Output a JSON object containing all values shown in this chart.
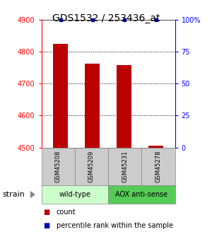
{
  "title": "GDS1532 / 253436_at",
  "samples": [
    "GSM45208",
    "GSM45209",
    "GSM45231",
    "GSM45278"
  ],
  "counts": [
    4825,
    4762,
    4757,
    4507
  ],
  "percentiles": [
    100,
    100,
    100,
    100
  ],
  "ylim_left": [
    4500,
    4900
  ],
  "ylim_right": [
    0,
    100
  ],
  "yticks_left": [
    4500,
    4600,
    4700,
    4800,
    4900
  ],
  "yticks_right": [
    0,
    25,
    50,
    75,
    100
  ],
  "bar_color": "#bb0000",
  "dot_color": "#0000bb",
  "bar_width": 0.45,
  "groups": [
    {
      "label": "wild-type",
      "color": "#ccffcc",
      "samples": [
        0,
        1
      ]
    },
    {
      "label": "AOX anti-sense",
      "color": "#55cc55",
      "samples": [
        2,
        3
      ]
    }
  ],
  "strain_label": "strain",
  "legend_count_label": "count",
  "legend_pct_label": "percentile rank within the sample",
  "background_color": "#ffffff",
  "label_box_color": "#cccccc",
  "title_fontsize": 10,
  "tick_fontsize": 7,
  "sample_fontsize": 6,
  "group_fontsize": 7,
  "legend_fontsize": 7
}
